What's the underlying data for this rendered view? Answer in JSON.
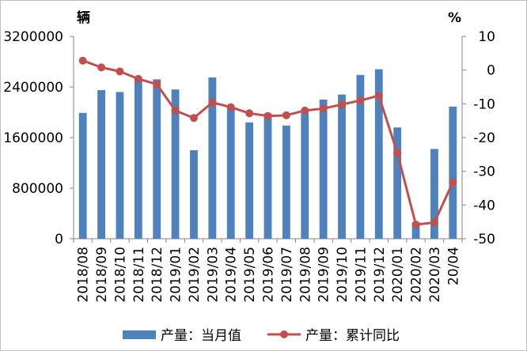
{
  "chart_data": {
    "type": "bar+line",
    "title": "",
    "left_axis_unit": "辆",
    "right_axis_unit": "%",
    "left_ylim": [
      0,
      3200000
    ],
    "left_ticks": [
      "0",
      "800000",
      "1600000",
      "2400000",
      "3200000"
    ],
    "left_tick_values": [
      0,
      800000,
      1600000,
      2400000,
      3200000
    ],
    "right_ylim": [
      -50,
      10
    ],
    "right_ticks": [
      "10",
      "0",
      "-10",
      "-20",
      "-30",
      "-40",
      "-50"
    ],
    "right_tick_values": [
      10,
      0,
      -10,
      -20,
      -30,
      -40,
      -50
    ],
    "categories": [
      "2018/08",
      "2018/09",
      "2018/10",
      "2018/11",
      "2018/12",
      "2019/01",
      "2019/02",
      "2019/03",
      "2019/04",
      "2019/05",
      "2019/06",
      "2019/07",
      "2019/08",
      "2019/09",
      "2019/10",
      "2019/11",
      "2019/12",
      "2020/01",
      "2020/02",
      "2020/03",
      "20/04"
    ],
    "series": [
      {
        "name": "产量：当月值",
        "axis": "left",
        "kind": "bar",
        "color": "#4f81bd",
        "values": [
          1990000,
          2350000,
          2320000,
          2520000,
          2520000,
          2360000,
          1400000,
          2550000,
          2080000,
          1840000,
          1980000,
          1790000,
          1990000,
          2200000,
          2280000,
          2590000,
          2680000,
          1760000,
          260000,
          1420000,
          2090000
        ]
      },
      {
        "name": "产量：累计同比",
        "axis": "right",
        "kind": "line",
        "color": "#c0504d",
        "values": [
          2.8,
          0.8,
          -0.4,
          -2.6,
          -4.2,
          -12,
          -14.2,
          -9.6,
          -11,
          -12.8,
          -13.6,
          -13.4,
          -12,
          -11.4,
          -10.2,
          -9,
          -7.6,
          -24.6,
          -45.8,
          -45.2,
          -33.2
        ]
      }
    ],
    "legend": {
      "position": "bottom",
      "items": [
        "产量：当月值",
        "产量：累计同比"
      ]
    },
    "grid": false
  }
}
